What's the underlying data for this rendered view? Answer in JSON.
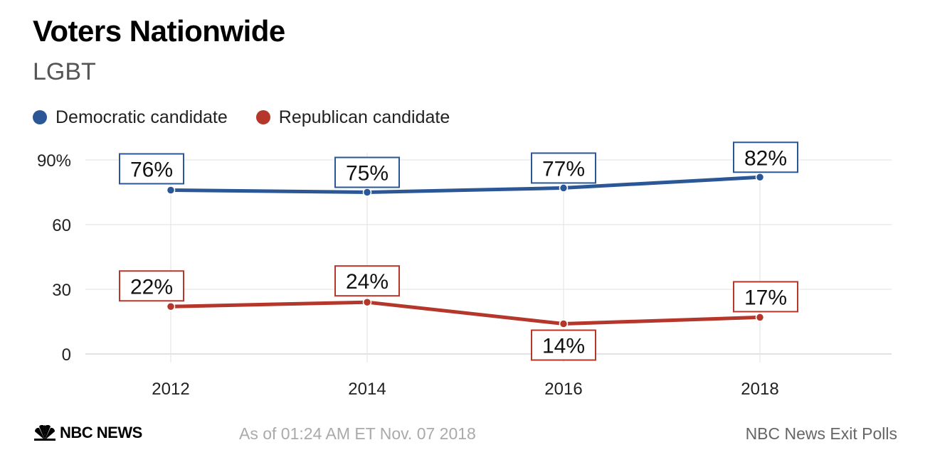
{
  "header": {
    "title": "Voters Nationwide",
    "subtitle": "LGBT"
  },
  "colors": {
    "democratic": "#2b5797",
    "republican": "#b5362a",
    "grid": "#e6e6e6",
    "axis_text": "#222222"
  },
  "chart_data": {
    "type": "line",
    "title": "Voters Nationwide",
    "subtitle": "LGBT",
    "x": [
      "2012",
      "2014",
      "2016",
      "2018"
    ],
    "y_ticks": [
      "0",
      "30",
      "60",
      "90%"
    ],
    "y_tick_values": [
      0,
      30,
      60,
      90
    ],
    "ylim": [
      0,
      90
    ],
    "grid": true,
    "legend_position": "top-left",
    "series": [
      {
        "name": "Democratic candidate",
        "color": "#2b5797",
        "values": [
          76,
          75,
          77,
          82
        ],
        "labels": [
          "76%",
          "75%",
          "77%",
          "82%"
        ]
      },
      {
        "name": "Republican candidate",
        "color": "#b5362a",
        "values": [
          22,
          24,
          14,
          17
        ],
        "labels": [
          "22%",
          "24%",
          "14%",
          "17%"
        ]
      }
    ]
  },
  "footer": {
    "logo_text": "NBC NEWS",
    "logo_icon": "peacock-icon",
    "timestamp": "As of 01:24 AM ET Nov. 07 2018",
    "source": "NBC News Exit Polls"
  }
}
